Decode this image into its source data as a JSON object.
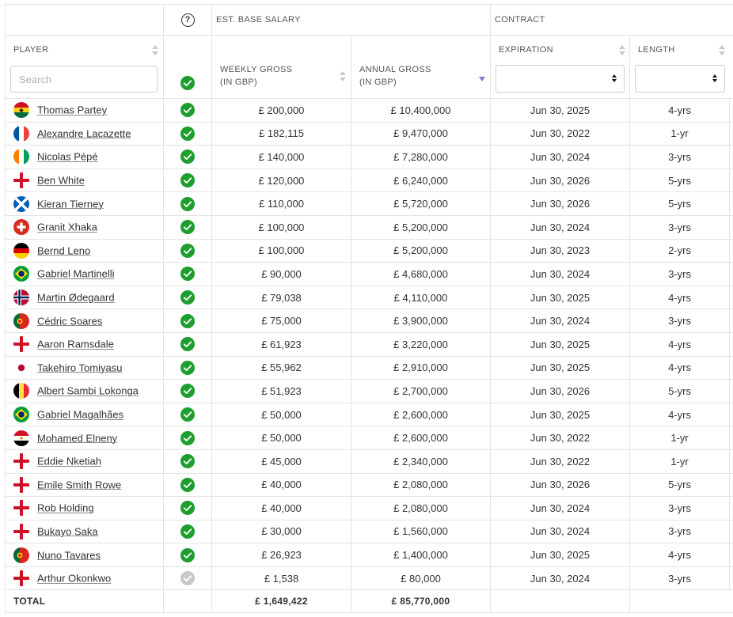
{
  "header": {
    "help_icon_glyph": "?",
    "group_salary": "EST. BASE SALARY",
    "group_contract": "CONTRACT",
    "col_player": "PLAYER",
    "col_weekly_line1": "WEEKLY GROSS",
    "col_weekly_line2": "(IN GBP)",
    "col_annual_line1": "ANNUAL GROSS",
    "col_annual_line2": "(IN GBP)",
    "col_expiration": "EXPIRATION",
    "col_length": "LENGTH",
    "search_placeholder": "Search",
    "expiration_filter_value": "",
    "length_filter_value": ""
  },
  "colors": {
    "check_active": "#1e9e2e",
    "check_inactive": "#c8c8c8",
    "sort_active": "#8080c8"
  },
  "rows": [
    {
      "name": "Thomas Partey",
      "flag": "ghana",
      "active": true,
      "weekly": "£ 200,000",
      "annual": "£ 10,400,000",
      "expiration": "Jun 30, 2025",
      "length": "4-yrs"
    },
    {
      "name": "Alexandre Lacazette",
      "flag": "france",
      "active": true,
      "weekly": "£ 182,115",
      "annual": "£ 9,470,000",
      "expiration": "Jun 30, 2022",
      "length": "1-yr"
    },
    {
      "name": "Nicolas Pépé",
      "flag": "ivory-coast",
      "active": true,
      "weekly": "£ 140,000",
      "annual": "£ 7,280,000",
      "expiration": "Jun 30, 2024",
      "length": "3-yrs"
    },
    {
      "name": "Ben White",
      "flag": "england",
      "active": true,
      "weekly": "£ 120,000",
      "annual": "£ 6,240,000",
      "expiration": "Jun 30, 2026",
      "length": "5-yrs"
    },
    {
      "name": "Kieran Tierney",
      "flag": "scotland",
      "active": true,
      "weekly": "£ 110,000",
      "annual": "£ 5,720,000",
      "expiration": "Jun 30, 2026",
      "length": "5-yrs"
    },
    {
      "name": "Granit Xhaka",
      "flag": "switzerland",
      "active": true,
      "weekly": "£ 100,000",
      "annual": "£ 5,200,000",
      "expiration": "Jun 30, 2024",
      "length": "3-yrs"
    },
    {
      "name": "Bernd Leno",
      "flag": "germany",
      "active": true,
      "weekly": "£ 100,000",
      "annual": "£ 5,200,000",
      "expiration": "Jun 30, 2023",
      "length": "2-yrs"
    },
    {
      "name": "Gabriel Martinelli",
      "flag": "brazil",
      "active": true,
      "weekly": "£ 90,000",
      "annual": "£ 4,680,000",
      "expiration": "Jun 30, 2024",
      "length": "3-yrs"
    },
    {
      "name": "Martin Ødegaard",
      "flag": "norway",
      "active": true,
      "weekly": "£ 79,038",
      "annual": "£ 4,110,000",
      "expiration": "Jun 30, 2025",
      "length": "4-yrs"
    },
    {
      "name": "Cédric Soares",
      "flag": "portugal",
      "active": true,
      "weekly": "£ 75,000",
      "annual": "£ 3,900,000",
      "expiration": "Jun 30, 2024",
      "length": "3-yrs"
    },
    {
      "name": "Aaron Ramsdale",
      "flag": "england",
      "active": true,
      "weekly": "£ 61,923",
      "annual": "£ 3,220,000",
      "expiration": "Jun 30, 2025",
      "length": "4-yrs"
    },
    {
      "name": "Takehiro Tomiyasu",
      "flag": "japan",
      "active": true,
      "weekly": "£ 55,962",
      "annual": "£ 2,910,000",
      "expiration": "Jun 30, 2025",
      "length": "4-yrs"
    },
    {
      "name": "Albert Sambi Lokonga",
      "flag": "belgium",
      "active": true,
      "weekly": "£ 51,923",
      "annual": "£ 2,700,000",
      "expiration": "Jun 30, 2026",
      "length": "5-yrs"
    },
    {
      "name": "Gabriel Magalhães",
      "flag": "brazil",
      "active": true,
      "weekly": "£ 50,000",
      "annual": "£ 2,600,000",
      "expiration": "Jun 30, 2025",
      "length": "4-yrs"
    },
    {
      "name": "Mohamed Elneny",
      "flag": "egypt",
      "active": true,
      "weekly": "£ 50,000",
      "annual": "£ 2,600,000",
      "expiration": "Jun 30, 2022",
      "length": "1-yr"
    },
    {
      "name": "Eddie Nketiah",
      "flag": "england",
      "active": true,
      "weekly": "£ 45,000",
      "annual": "£ 2,340,000",
      "expiration": "Jun 30, 2022",
      "length": "1-yr"
    },
    {
      "name": "Emile Smith Rowe",
      "flag": "england",
      "active": true,
      "weekly": "£ 40,000",
      "annual": "£ 2,080,000",
      "expiration": "Jun 30, 2026",
      "length": "5-yrs"
    },
    {
      "name": "Rob Holding",
      "flag": "england",
      "active": true,
      "weekly": "£ 40,000",
      "annual": "£ 2,080,000",
      "expiration": "Jun 30, 2024",
      "length": "3-yrs"
    },
    {
      "name": "Bukayo Saka",
      "flag": "england",
      "active": true,
      "weekly": "£ 30,000",
      "annual": "£ 1,560,000",
      "expiration": "Jun 30, 2024",
      "length": "3-yrs"
    },
    {
      "name": "Nuno Tavares",
      "flag": "portugal",
      "active": true,
      "weekly": "£ 26,923",
      "annual": "£ 1,400,000",
      "expiration": "Jun 30, 2025",
      "length": "4-yrs"
    },
    {
      "name": "Arthur Okonkwo",
      "flag": "england",
      "active": false,
      "weekly": "£ 1,538",
      "annual": "£ 80,000",
      "expiration": "Jun 30, 2024",
      "length": "3-yrs"
    }
  ],
  "total": {
    "label": "TOTAL",
    "weekly": "£ 1,649,422",
    "annual": "£ 85,770,000"
  }
}
